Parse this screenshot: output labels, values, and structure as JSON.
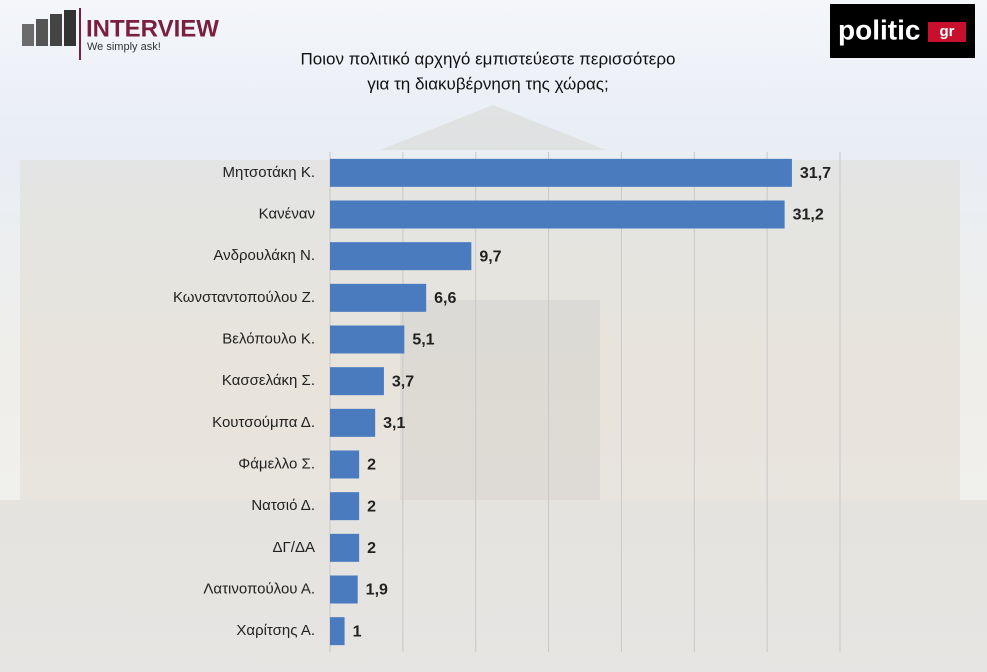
{
  "chart_data": {
    "type": "hbar",
    "title_lines": [
      "Ποιον πολιτικό αρχηγό εμπιστεύεστε περισσότερο",
      "για τη διακυβέρνηση της χώρας;"
    ],
    "categories": [
      "Μητσοτάκη Κ.",
      "Κανέναν",
      "Ανδρουλάκη Ν.",
      "Κωνσταντοπούλου Ζ.",
      "Βελόπουλο Κ.",
      "Κασσελάκη Σ.",
      "Κουτσούμπα Δ.",
      "Φάμελλο Σ.",
      "Νατσιό Δ.",
      "ΔΓ/ΔΑ",
      "Λατινοπούλου Α.",
      "Χαρίτσης Α."
    ],
    "values": [
      31.7,
      31.2,
      9.7,
      6.6,
      5.1,
      3.7,
      3.1,
      2,
      2,
      2,
      1.9,
      1
    ],
    "value_labels": [
      "31,7",
      "31,2",
      "9,7",
      "6,6",
      "5,1",
      "3,7",
      "3,1",
      "2",
      "2",
      "2",
      "1,9",
      "1"
    ],
    "color": "#4a7bbf",
    "xlim": [
      0,
      35
    ],
    "xticks": [
      0,
      5,
      10,
      15,
      20,
      25,
      30,
      35
    ],
    "grid": true
  },
  "logos": {
    "interview": "INTERVIEW",
    "interview_tagline": "We simply ask!",
    "politic": "politic",
    "politic_suffix": "gr"
  }
}
